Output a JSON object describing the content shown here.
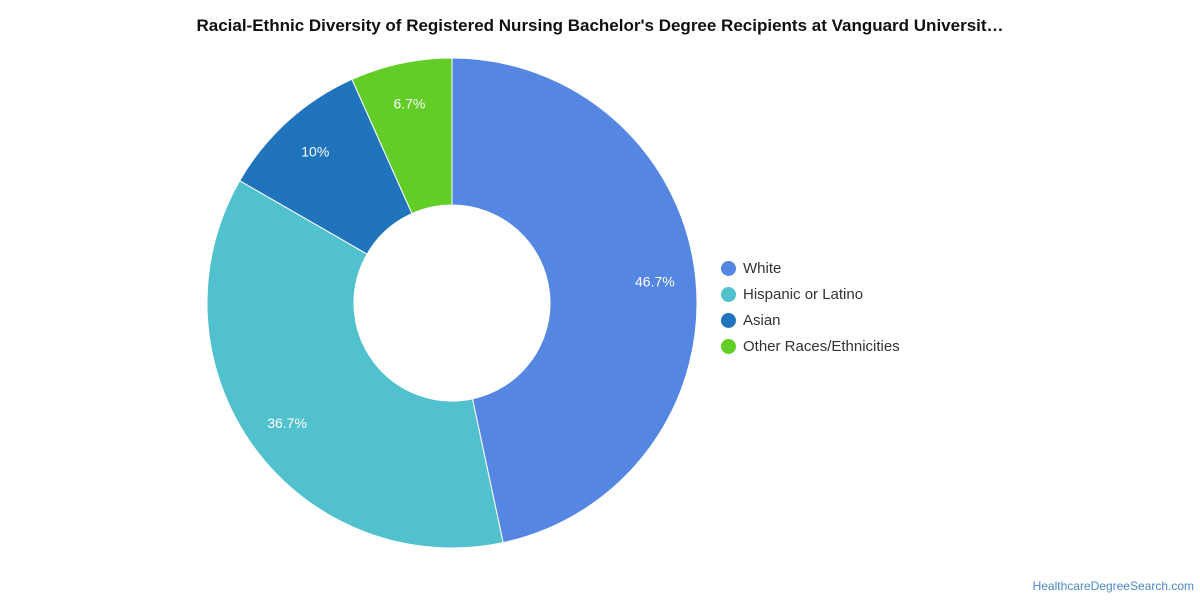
{
  "chart_data": {
    "type": "pie",
    "title": "Racial-Ethnic Diversity of Registered Nursing Bachelor's Degree Recipients at Vanguard Universit…",
    "donut": true,
    "legend_position": "right",
    "slices": [
      {
        "label": "White",
        "value": 46.7,
        "display": "46.7%",
        "color": "#5486e2"
      },
      {
        "label": "Hispanic or Latino",
        "value": 36.7,
        "display": "36.7%",
        "color": "#51c1ce"
      },
      {
        "label": "Asian",
        "value": 10,
        "display": "10%",
        "color": "#1f74bc"
      },
      {
        "label": "Other Races/Ethnicities",
        "value": 6.7,
        "display": "6.7%",
        "color": "#62cd26"
      }
    ]
  },
  "footer": {
    "source": "HealthcareDegreeSearch.com"
  }
}
